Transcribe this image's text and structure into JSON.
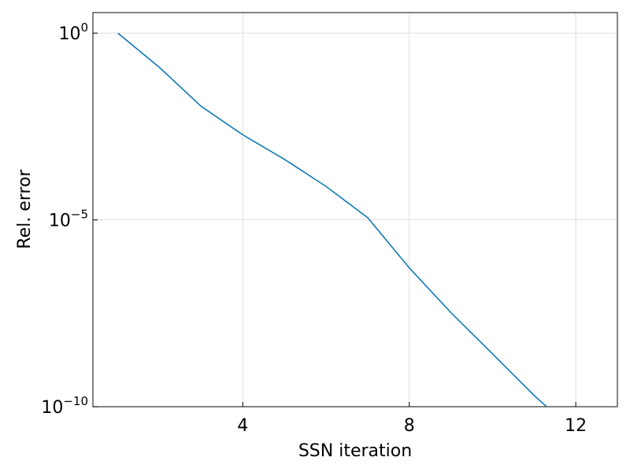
{
  "chart_data": {
    "type": "line",
    "xlabel": "SSN iteration",
    "ylabel": "Rel. error",
    "xlim": [
      0.4,
      13.0
    ],
    "ylim_log10": [
      -10,
      0.55
    ],
    "yscale": "log",
    "grid": true,
    "x_ticks": [
      4,
      8,
      12
    ],
    "x_tick_labels": [
      "4",
      "8",
      "12"
    ],
    "y_ticks_log10": [
      0,
      -5,
      -10
    ],
    "y_tick_labels": [
      {
        "base": "10",
        "exp": "0"
      },
      {
        "base": "10",
        "exp": "−5"
      },
      {
        "base": "10",
        "exp": "−10"
      }
    ],
    "series": [
      {
        "color": "#0072b2",
        "x": [
          1,
          2,
          3,
          4,
          5,
          6,
          7,
          8,
          9,
          10,
          11,
          11.3
        ],
        "y": [
          1.0,
          0.12,
          0.011,
          0.0019,
          0.00042,
          7.9e-05,
          1.15e-05,
          5.2e-07,
          3.3e-08,
          2.6e-09,
          2e-10,
          1e-10
        ]
      }
    ]
  }
}
